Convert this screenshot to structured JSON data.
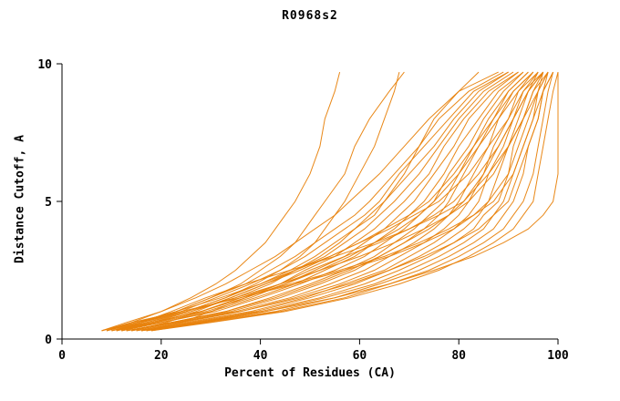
{
  "chart_data": {
    "type": "line",
    "title": "R0968s2",
    "xlabel": "Percent of Residues (CA)",
    "ylabel": "Distance Cutoff, A",
    "xlim": [
      0,
      100
    ],
    "ylim": [
      0,
      10
    ],
    "xticks": [
      0,
      20,
      40,
      60,
      80,
      100
    ],
    "yticks": [
      0,
      5,
      10
    ],
    "grid": false,
    "legend": "none",
    "line_color": "#e8820c",
    "axis_color": "#000000",
    "cutoffs_A": [
      0.3,
      0.6,
      1.0,
      1.5,
      2.0,
      2.5,
      3.0,
      3.5,
      4.0,
      4.5,
      5.0,
      6.0,
      7.0,
      8.0,
      9.0,
      9.7
    ],
    "series_percent_values": [
      [
        8,
        13,
        20,
        27,
        33,
        38,
        43,
        47,
        51,
        55,
        58,
        64,
        69,
        74,
        80,
        88
      ],
      [
        9,
        15,
        23,
        30,
        37,
        42,
        47,
        51,
        55,
        59,
        62,
        67,
        72,
        76,
        82,
        89
      ],
      [
        10,
        16,
        25,
        33,
        40,
        46,
        51,
        55,
        59,
        63,
        65,
        70,
        75,
        79,
        84,
        90
      ],
      [
        11,
        18,
        28,
        36,
        44,
        49,
        55,
        59,
        63,
        66,
        69,
        74,
        77,
        81,
        86,
        92
      ],
      [
        12,
        20,
        30,
        39,
        47,
        53,
        59,
        63,
        67,
        70,
        73,
        77,
        80,
        84,
        88,
        93
      ],
      [
        13,
        22,
        33,
        42,
        50,
        57,
        63,
        67,
        71,
        74,
        77,
        80,
        83,
        86,
        90,
        94
      ],
      [
        14,
        23,
        35,
        46,
        54,
        61,
        66,
        71,
        75,
        78,
        80,
        83,
        86,
        88,
        91,
        95
      ],
      [
        15,
        25,
        38,
        49,
        57,
        65,
        70,
        75,
        79,
        82,
        84,
        86,
        89,
        91,
        93,
        96
      ],
      [
        16,
        27,
        40,
        52,
        61,
        68,
        74,
        79,
        83,
        85,
        88,
        90,
        91,
        93,
        95,
        98
      ],
      [
        17,
        28,
        43,
        55,
        64,
        72,
        78,
        83,
        87,
        89,
        91,
        93,
        94,
        96,
        97,
        99
      ],
      [
        18,
        30,
        45,
        58,
        68,
        76,
        82,
        87,
        91,
        93,
        95,
        96,
        97,
        98,
        99,
        100
      ],
      [
        9,
        16,
        24,
        31,
        38,
        44,
        49,
        53,
        57,
        61,
        64,
        68,
        73,
        78,
        83,
        90
      ],
      [
        10,
        17,
        26,
        35,
        42,
        47,
        53,
        57,
        61,
        64,
        67,
        72,
        76,
        80,
        85,
        91
      ],
      [
        11,
        19,
        29,
        38,
        45,
        51,
        57,
        61,
        65,
        68,
        71,
        75,
        79,
        82,
        87,
        92
      ],
      [
        12,
        20,
        31,
        40,
        48,
        55,
        61,
        65,
        69,
        72,
        75,
        78,
        82,
        85,
        89,
        93
      ],
      [
        13,
        22,
        34,
        44,
        52,
        59,
        64,
        69,
        73,
        76,
        78,
        81,
        84,
        87,
        90,
        94
      ],
      [
        15,
        24,
        36,
        47,
        56,
        63,
        68,
        73,
        77,
        80,
        82,
        85,
        87,
        90,
        92,
        95
      ],
      [
        16,
        26,
        39,
        50,
        59,
        66,
        72,
        77,
        81,
        84,
        86,
        88,
        90,
        92,
        94,
        97
      ],
      [
        17,
        28,
        41,
        53,
        63,
        70,
        76,
        81,
        85,
        87,
        89,
        91,
        93,
        95,
        96,
        98
      ],
      [
        18,
        29,
        44,
        57,
        66,
        74,
        80,
        85,
        89,
        91,
        93,
        95,
        96,
        97,
        98,
        99
      ],
      [
        14,
        21,
        28,
        36,
        46,
        56,
        65,
        72,
        78,
        83,
        87,
        91,
        93,
        95,
        97,
        98
      ],
      [
        8,
        15,
        25,
        35,
        44,
        52,
        60,
        67,
        73,
        78,
        82,
        87,
        90,
        93,
        95,
        97
      ],
      [
        10,
        18,
        28,
        37,
        45,
        52,
        58,
        63,
        68,
        72,
        75,
        80,
        84,
        88,
        92,
        96
      ],
      [
        12,
        19,
        27,
        34,
        41,
        48,
        54,
        60,
        66,
        71,
        76,
        82,
        86,
        90,
        93,
        97
      ],
      [
        13,
        23,
        36,
        48,
        58,
        66,
        73,
        79,
        84,
        87,
        90,
        92,
        94,
        96,
        97,
        99
      ],
      [
        9,
        15,
        23,
        32,
        40,
        47,
        54,
        60,
        65,
        70,
        74,
        79,
        83,
        87,
        91,
        95
      ],
      [
        17,
        24,
        30,
        37,
        44,
        50,
        57,
        64,
        70,
        76,
        81,
        86,
        90,
        93,
        96,
        98
      ],
      [
        8,
        14,
        24,
        36,
        47,
        57,
        66,
        73,
        79,
        83,
        86,
        90,
        92,
        94,
        96,
        97
      ],
      [
        11,
        16,
        22,
        29,
        37,
        46,
        55,
        63,
        70,
        75,
        79,
        84,
        88,
        91,
        94,
        96
      ],
      [
        14,
        22,
        33,
        43,
        51,
        58,
        64,
        69,
        74,
        78,
        81,
        85,
        88,
        91,
        94,
        97
      ],
      [
        9,
        14,
        20,
        26,
        31,
        35,
        38,
        41,
        43,
        45,
        47,
        50,
        52,
        53,
        55,
        56
      ],
      [
        10,
        16,
        23,
        30,
        36,
        40,
        44,
        47,
        49,
        51,
        53,
        57,
        59,
        62,
        66,
        69
      ],
      [
        11,
        17,
        25,
        33,
        39,
        44,
        48,
        51,
        53,
        55,
        57,
        60,
        63,
        65,
        67,
        68
      ],
      [
        12,
        18,
        26,
        34,
        41,
        47,
        52,
        56,
        59,
        62,
        65,
        69,
        72,
        75,
        80,
        84
      ],
      [
        16,
        27,
        41,
        55,
        66,
        75,
        83,
        89,
        94,
        97,
        99,
        100,
        100,
        100,
        100,
        100
      ]
    ]
  }
}
